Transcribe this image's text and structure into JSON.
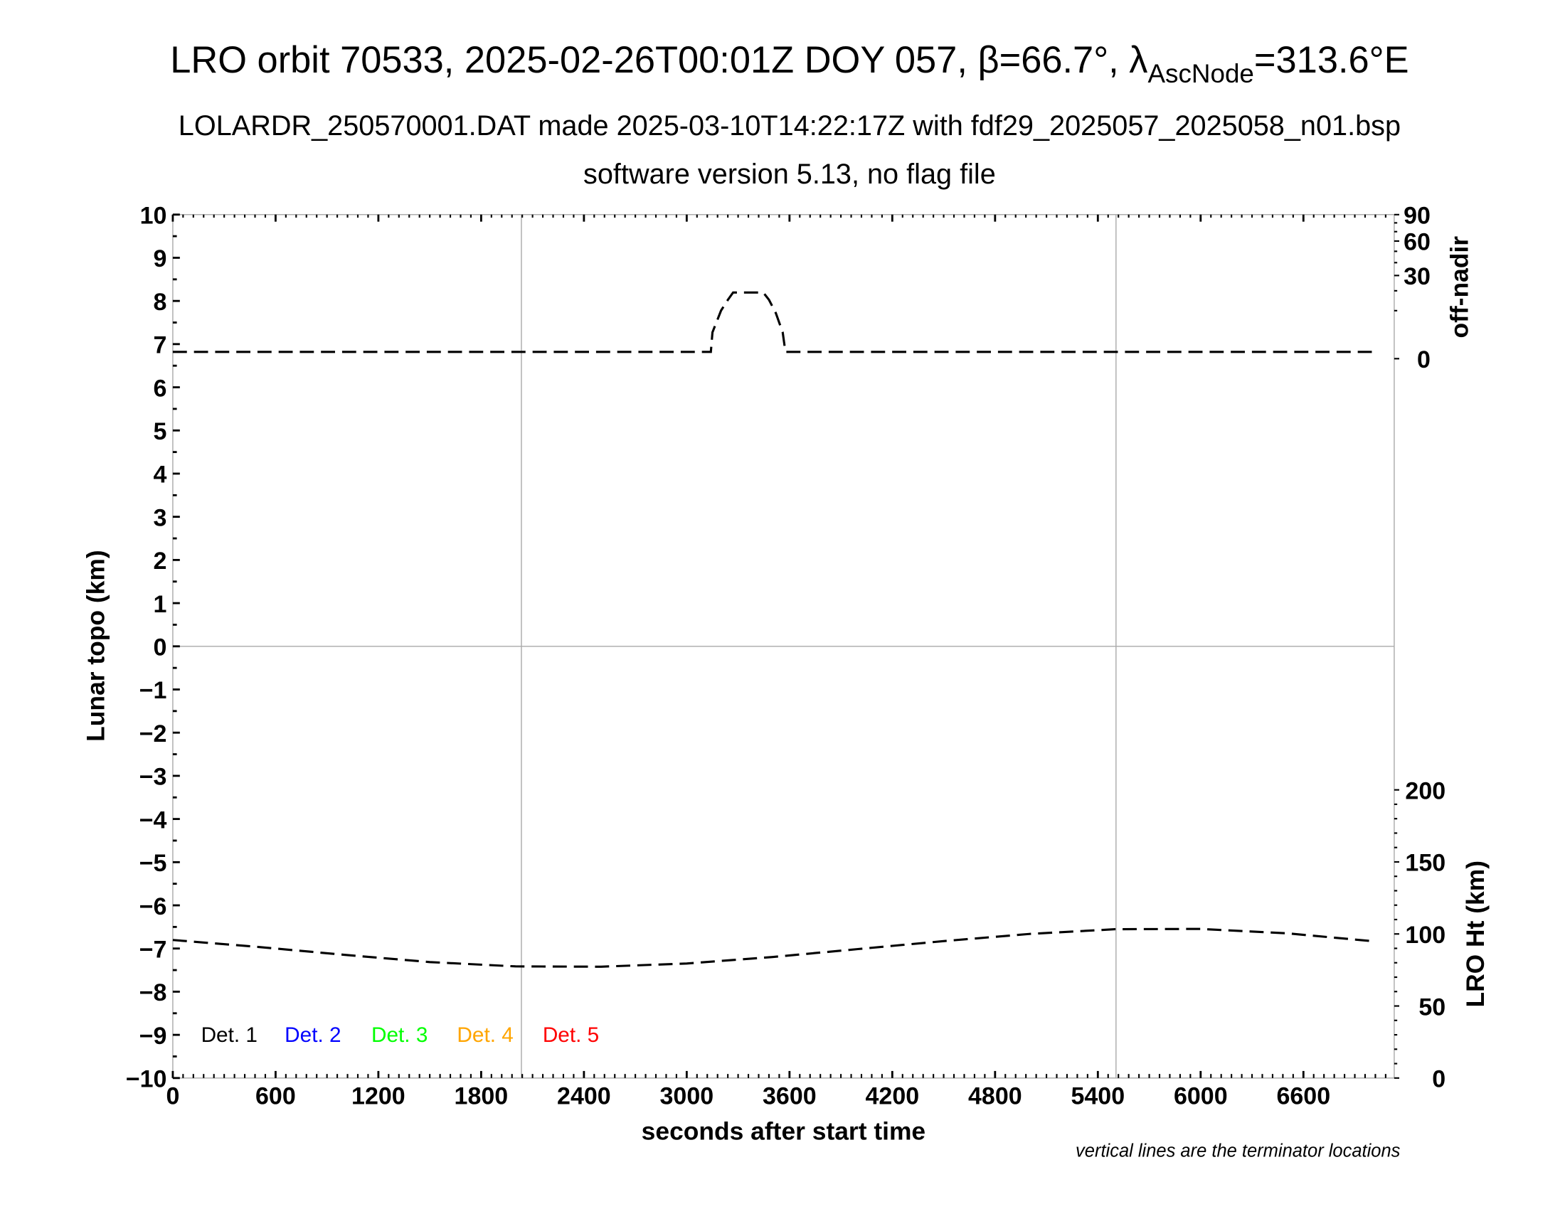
{
  "title": {
    "main": "LRO orbit 70533, 2025-02-26T00:01Z DOY 057, β=66.7°, λ",
    "subscript": "AscNode",
    "suffix": "=313.6°E"
  },
  "subtitle": "LOLARDR_250570001.DAT made 2025-03-10T14:22:17Z with fdf29_2025057_2025058_n01.bsp",
  "subtitle2": "software version 5.13, no flag file",
  "footnote": "vertical lines are the terminator locations",
  "chart_data": {
    "type": "line",
    "xlabel": "seconds after start time",
    "ylabel": "Lunar topo (km)",
    "y2label_top": "off-nadir",
    "y2label_bottom": "LRO Ht (km)",
    "xlim": [
      0,
      7130
    ],
    "ylim": [
      -10,
      10
    ],
    "x_ticks": [
      "0",
      "600",
      "1200",
      "1800",
      "2400",
      "3000",
      "3600",
      "4200",
      "4800",
      "5400",
      "6000",
      "6600"
    ],
    "y_ticks": [
      "10",
      "9",
      "8",
      "7",
      "6",
      "5",
      "4",
      "3",
      "2",
      "1",
      "0",
      "−1",
      "−2",
      "−3",
      "−4",
      "−5",
      "−6",
      "−7",
      "−8",
      "−9",
      "−10"
    ],
    "offnadir_ticks": [
      "90",
      "60",
      "30",
      "0"
    ],
    "offnadir_scale": "sqrt",
    "ht_ticks": [
      "200",
      "150",
      "100",
      "50",
      "0"
    ],
    "ht_range": [
      0,
      200
    ],
    "terminator_lines_x": [
      2035,
      5506
    ],
    "legend": [
      {
        "label": "Det. 1",
        "color": "#000000"
      },
      {
        "label": "Det. 2",
        "color": "#0000ff"
      },
      {
        "label": "Det. 3",
        "color": "#00ff00"
      },
      {
        "label": "Det. 4",
        "color": "#ffa500"
      },
      {
        "label": "Det. 5",
        "color": "#ff0000"
      }
    ],
    "series": [
      {
        "axis": "off-nadir (deg)",
        "style": "dashed",
        "x": [
          0,
          1000,
          2000,
          3000,
          3141,
          3150,
          3200,
          3240,
          3271,
          3447,
          3480,
          3520,
          3560,
          3576,
          4000,
          5000,
          6000,
          7000
        ],
        "y": [
          0.2,
          0.2,
          0.2,
          0.2,
          0.2,
          3,
          10,
          15,
          19,
          19,
          15,
          9,
          3,
          0.2,
          0.2,
          0.2,
          0.2,
          0.2
        ]
      },
      {
        "axis": "LRO Ht (km)",
        "style": "dashed",
        "x": [
          0,
          500,
          1000,
          1500,
          2000,
          2500,
          3000,
          3500,
          4000,
          4500,
          5000,
          5500,
          6000,
          6500,
          7000
        ],
        "y": [
          95.8,
          91,
          85.5,
          80.5,
          77.5,
          77.3,
          79.5,
          84,
          89.5,
          95,
          100,
          103.3,
          103.5,
          100.5,
          95
        ]
      }
    ]
  }
}
